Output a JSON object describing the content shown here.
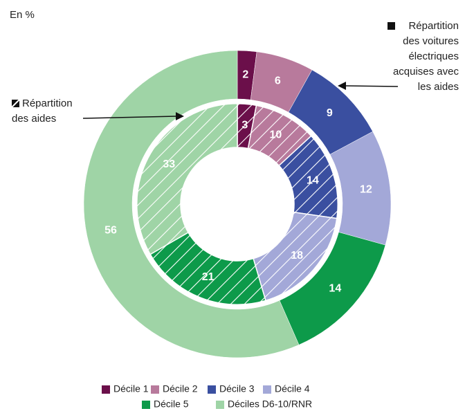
{
  "chart_data": {
    "type": "nested-donut",
    "unit_label": "En %",
    "categories": [
      "Décile 1",
      "Décile 2",
      "Décile 3",
      "Décile 4",
      "Décile 5",
      "Déciles D6-10/RNR"
    ],
    "colors": [
      "#6b0f4a",
      "#b87a9c",
      "#3a4fa0",
      "#a3a8d8",
      "#0d9a4a",
      "#9fd4a6"
    ],
    "series": [
      {
        "label": [
          "Répartition",
          "des voitures",
          "électriques",
          "acquises avec",
          "les aides"
        ],
        "ring": "outer",
        "hatched": false,
        "values": [
          2,
          6,
          9,
          12,
          14,
          56
        ]
      },
      {
        "label": [
          "Répartition",
          "des aides"
        ],
        "ring": "inner",
        "hatched": true,
        "values": [
          3,
          10,
          14,
          18,
          21,
          33
        ]
      }
    ]
  }
}
